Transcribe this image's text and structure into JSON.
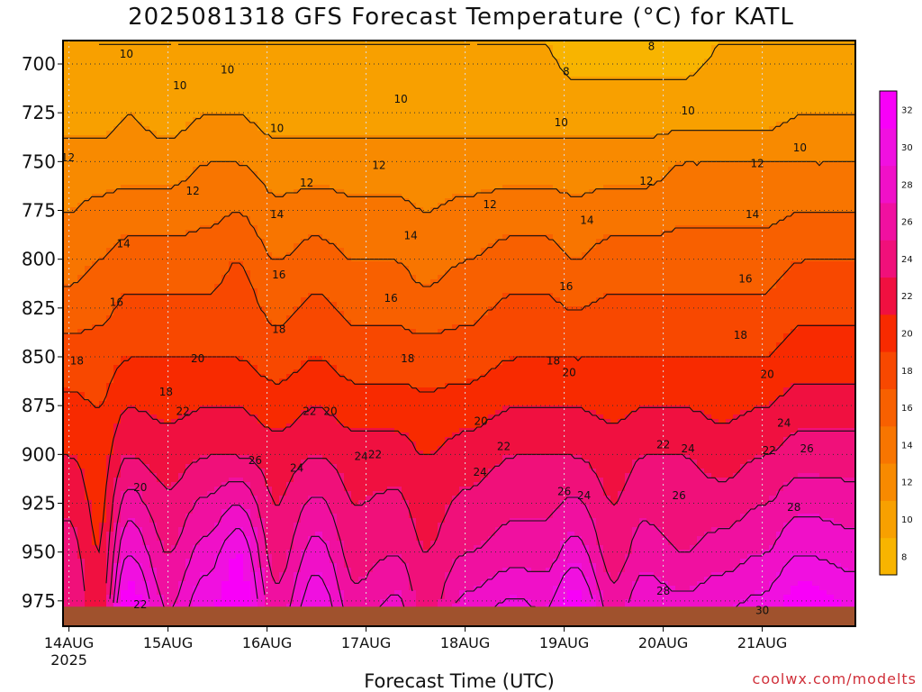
{
  "title": "2025081318 GFS Forecast Temperature (°C) for KATL",
  "xlabel": "Forecast Time (UTC)",
  "credit": "coolwx.com/modelts",
  "chart_data": {
    "type": "heatmap",
    "title": "2025081318 GFS Forecast Temperature (°C) for KATL",
    "xlabel": "Forecast Time (UTC)",
    "ylabel": "",
    "x_ticks": [
      {
        "label": "14AUG",
        "sub": "2025",
        "t": 0
      },
      {
        "label": "15AUG",
        "t": 1
      },
      {
        "label": "16AUG",
        "t": 2
      },
      {
        "label": "17AUG",
        "t": 3
      },
      {
        "label": "18AUG",
        "t": 4
      },
      {
        "label": "19AUG",
        "t": 5
      },
      {
        "label": "20AUG",
        "t": 6
      },
      {
        "label": "21AUG",
        "t": 7
      }
    ],
    "xlim": [
      -0.06,
      7.94
    ],
    "y_ticks": [
      700,
      725,
      750,
      775,
      800,
      825,
      850,
      875,
      900,
      925,
      950,
      975
    ],
    "ylim": [
      688,
      988
    ],
    "grid": true,
    "colorbar": {
      "labels": [
        8,
        10,
        12,
        14,
        16,
        18,
        20,
        22,
        24,
        26,
        28,
        30,
        32
      ],
      "colors": [
        "#f8b400",
        "#f8a000",
        "#f88a00",
        "#f87500",
        "#f86000",
        "#f84800",
        "#f82a00",
        "#f01040",
        "#f0107a",
        "#f010a0",
        "#f010c8",
        "#f010e0",
        "#f800f8"
      ]
    },
    "temperature_profiles": [
      {
        "t": 0.0,
        "p": [
          688,
          725,
          750,
          800,
          850,
          900,
          950,
          980
        ],
        "T": [
          10,
          10,
          12,
          14,
          18,
          21,
          24,
          25
        ]
      },
      {
        "t": 0.3,
        "p": [
          688,
          725,
          750,
          800,
          850,
          900,
          950,
          980
        ],
        "T": [
          9,
          10,
          12,
          15,
          18,
          20,
          21,
          22
        ]
      },
      {
        "t": 0.6,
        "p": [
          688,
          725,
          750,
          800,
          850,
          900,
          950,
          980
        ],
        "T": [
          9,
          11,
          12,
          16,
          19,
          23,
          29,
          33
        ]
      },
      {
        "t": 1.0,
        "p": [
          688,
          725,
          750,
          800,
          850,
          900,
          950,
          980
        ],
        "T": [
          9,
          10,
          12,
          16,
          19,
          22,
          25,
          27
        ]
      },
      {
        "t": 1.4,
        "p": [
          688,
          725,
          750,
          800,
          850,
          900,
          950,
          980
        ],
        "T": [
          9,
          11,
          13,
          16,
          19,
          23,
          28,
          31
        ]
      },
      {
        "t": 1.7,
        "p": [
          688,
          725,
          750,
          800,
          850,
          900,
          950,
          980
        ],
        "T": [
          9,
          11,
          13,
          17,
          19,
          23,
          31,
          33
        ]
      },
      {
        "t": 2.1,
        "p": [
          688,
          725,
          750,
          800,
          850,
          900,
          950,
          980
        ],
        "T": [
          9,
          10,
          12,
          15,
          18,
          22,
          24,
          26
        ]
      },
      {
        "t": 2.5,
        "p": [
          688,
          725,
          750,
          800,
          850,
          900,
          950,
          980
        ],
        "T": [
          9,
          10,
          12,
          16,
          19,
          23,
          28,
          31
        ]
      },
      {
        "t": 2.9,
        "p": [
          688,
          725,
          750,
          800,
          850,
          900,
          950,
          980
        ],
        "T": [
          9,
          10,
          12,
          15,
          18,
          22,
          24,
          26
        ]
      },
      {
        "t": 3.3,
        "p": [
          688,
          725,
          750,
          800,
          850,
          900,
          950,
          980
        ],
        "T": [
          9,
          10,
          12,
          15,
          18,
          22,
          25,
          28
        ]
      },
      {
        "t": 3.6,
        "p": [
          688,
          725,
          750,
          800,
          850,
          900,
          950,
          980
        ],
        "T": [
          9,
          10,
          12,
          14,
          18,
          21,
          23,
          24
        ]
      },
      {
        "t": 4.0,
        "p": [
          688,
          725,
          750,
          800,
          850,
          900,
          950,
          980
        ],
        "T": [
          9,
          10,
          12,
          15,
          18,
          22,
          25,
          28
        ]
      },
      {
        "t": 4.5,
        "p": [
          688,
          725,
          750,
          800,
          850,
          900,
          950,
          980
        ],
        "T": [
          9,
          10,
          12,
          16,
          19,
          23,
          26,
          30
        ]
      },
      {
        "t": 4.8,
        "p": [
          688,
          725,
          750,
          800,
          850,
          900,
          950,
          980
        ],
        "T": [
          9,
          10,
          12,
          16,
          19,
          23,
          26,
          29
        ]
      },
      {
        "t": 5.1,
        "p": [
          688,
          725,
          750,
          800,
          850,
          900,
          950,
          980
        ],
        "T": [
          8,
          10,
          12,
          15,
          19,
          23,
          28,
          33
        ]
      },
      {
        "t": 5.5,
        "p": [
          688,
          725,
          750,
          800,
          850,
          900,
          950,
          980
        ],
        "T": [
          8,
          10,
          12,
          16,
          19,
          22,
          24,
          26
        ]
      },
      {
        "t": 5.8,
        "p": [
          688,
          725,
          750,
          800,
          850,
          900,
          950,
          980
        ],
        "T": [
          8,
          10,
          12,
          16,
          19,
          23,
          26,
          29
        ]
      },
      {
        "t": 6.2,
        "p": [
          688,
          725,
          750,
          800,
          850,
          900,
          950,
          980
        ],
        "T": [
          8,
          10,
          13,
          16,
          19,
          23,
          25,
          28
        ]
      },
      {
        "t": 6.6,
        "p": [
          688,
          725,
          750,
          800,
          850,
          900,
          950,
          980
        ],
        "T": [
          9,
          10,
          13,
          16,
          19,
          22,
          26,
          29
        ]
      },
      {
        "t": 7.0,
        "p": [
          688,
          725,
          750,
          800,
          850,
          900,
          950,
          980
        ],
        "T": [
          9,
          10,
          13,
          16,
          19,
          23,
          27,
          30
        ]
      },
      {
        "t": 7.4,
        "p": [
          688,
          725,
          750,
          800,
          850,
          900,
          950,
          980
        ],
        "T": [
          9,
          11,
          13,
          17,
          20,
          24,
          29,
          33
        ]
      },
      {
        "t": 7.94,
        "p": [
          688,
          725,
          750,
          800,
          850,
          900,
          950,
          980
        ],
        "T": [
          9,
          11,
          13,
          17,
          20,
          24,
          28,
          31
        ]
      }
    ],
    "surface_pressure": 978,
    "contour_labels": [
      {
        "text": "10",
        "t": 0.58,
        "p": 695
      },
      {
        "text": "10",
        "t": 1.12,
        "p": 711
      },
      {
        "text": "10",
        "t": 1.6,
        "p": 703
      },
      {
        "text": "10",
        "t": 2.1,
        "p": 733
      },
      {
        "text": "10",
        "t": 3.35,
        "p": 718
      },
      {
        "text": "10",
        "t": 4.97,
        "p": 730
      },
      {
        "text": "10",
        "t": 6.25,
        "p": 724
      },
      {
        "text": "10",
        "t": 7.38,
        "p": 743
      },
      {
        "text": "8",
        "t": 5.02,
        "p": 704
      },
      {
        "text": "8",
        "t": 5.88,
        "p": 691
      },
      {
        "text": "12",
        "t": -0.01,
        "p": 748
      },
      {
        "text": "12",
        "t": 1.25,
        "p": 765
      },
      {
        "text": "12",
        "t": 2.4,
        "p": 761
      },
      {
        "text": "12",
        "t": 3.13,
        "p": 752
      },
      {
        "text": "12",
        "t": 4.25,
        "p": 772
      },
      {
        "text": "12",
        "t": 5.83,
        "p": 760
      },
      {
        "text": "12",
        "t": 6.95,
        "p": 751
      },
      {
        "text": "14",
        "t": 0.55,
        "p": 792
      },
      {
        "text": "14",
        "t": 2.1,
        "p": 777
      },
      {
        "text": "14",
        "t": 3.45,
        "p": 788
      },
      {
        "text": "14",
        "t": 5.23,
        "p": 780
      },
      {
        "text": "14",
        "t": 6.9,
        "p": 777
      },
      {
        "text": "16",
        "t": 0.48,
        "p": 822
      },
      {
        "text": "16",
        "t": 2.12,
        "p": 808
      },
      {
        "text": "16",
        "t": 3.25,
        "p": 820
      },
      {
        "text": "16",
        "t": 5.02,
        "p": 814
      },
      {
        "text": "16",
        "t": 6.83,
        "p": 810
      },
      {
        "text": "18",
        "t": 0.08,
        "p": 852
      },
      {
        "text": "18",
        "t": 0.98,
        "p": 868
      },
      {
        "text": "18",
        "t": 2.12,
        "p": 836
      },
      {
        "text": "18",
        "t": 3.42,
        "p": 851
      },
      {
        "text": "18",
        "t": 4.89,
        "p": 852
      },
      {
        "text": "18",
        "t": 6.78,
        "p": 839
      },
      {
        "text": "20",
        "t": 0.72,
        "p": 917
      },
      {
        "text": "20",
        "t": 1.3,
        "p": 851
      },
      {
        "text": "20",
        "t": 2.64,
        "p": 878
      },
      {
        "text": "20",
        "t": 4.16,
        "p": 883
      },
      {
        "text": "20",
        "t": 5.05,
        "p": 858
      },
      {
        "text": "20",
        "t": 7.05,
        "p": 859
      },
      {
        "text": "22",
        "t": 0.72,
        "p": 977
      },
      {
        "text": "22",
        "t": 1.15,
        "p": 878
      },
      {
        "text": "22",
        "t": 2.43,
        "p": 878
      },
      {
        "text": "22",
        "t": 3.09,
        "p": 900
      },
      {
        "text": "22",
        "t": 4.39,
        "p": 896
      },
      {
        "text": "22",
        "t": 6.0,
        "p": 895
      },
      {
        "text": "22",
        "t": 7.07,
        "p": 898
      },
      {
        "text": "24",
        "t": 2.3,
        "p": 907
      },
      {
        "text": "24",
        "t": 2.95,
        "p": 901
      },
      {
        "text": "24",
        "t": 4.15,
        "p": 909
      },
      {
        "text": "24",
        "t": 5.2,
        "p": 921
      },
      {
        "text": "24",
        "t": 6.25,
        "p": 897
      },
      {
        "text": "24",
        "t": 7.22,
        "p": 884
      },
      {
        "text": "26",
        "t": 1.88,
        "p": 903
      },
      {
        "text": "26",
        "t": 5.0,
        "p": 919
      },
      {
        "text": "26",
        "t": 6.16,
        "p": 921
      },
      {
        "text": "26",
        "t": 7.45,
        "p": 897
      },
      {
        "text": "28",
        "t": 6.0,
        "p": 970
      },
      {
        "text": "28",
        "t": 7.32,
        "p": 927
      },
      {
        "text": "30",
        "t": 7.0,
        "p": 980
      }
    ]
  }
}
